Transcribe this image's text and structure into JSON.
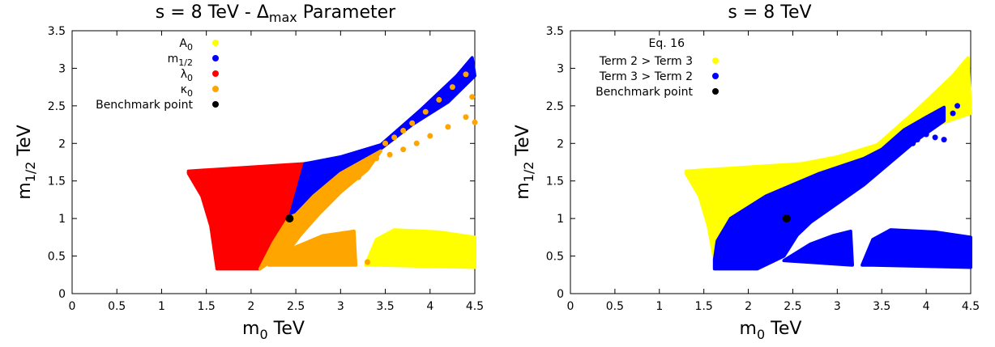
{
  "chart_data": [
    {
      "type": "scatter",
      "title": "s = 8 TeV - Δ",
      "title_sub": "max",
      "title_rest": " Parameter",
      "xlabel": "m",
      "xlabel_sub": "0",
      "xlabel_unit": " TeV",
      "ylabel": "m",
      "ylabel_sub": "1/2",
      "ylabel_unit": " TeV",
      "xlim": [
        0,
        4.5
      ],
      "ylim": [
        0,
        3.5
      ],
      "x_ticks": [
        "0",
        "0.5",
        "1",
        "1.5",
        "2",
        "2.5",
        "3",
        "3.5",
        "4",
        "4.5"
      ],
      "y_ticks": [
        "0",
        "0.5",
        "1",
        "1.5",
        "2",
        "2.5",
        "3",
        "3.5"
      ],
      "legend_position": "top-left",
      "legend": [
        {
          "main": "A",
          "sub": "0",
          "color": "#ffff00"
        },
        {
          "main": "m",
          "sub": "1/2",
          "color": "#0000ff"
        },
        {
          "main": "λ",
          "sub": "0",
          "color": "#ff0000"
        },
        {
          "main": "κ",
          "sub": "0",
          "color": "#ffa500"
        },
        {
          "main": "Benchmark point",
          "sub": "",
          "color": "#000000"
        }
      ],
      "regions": [
        {
          "series": "λ0",
          "color": "#ff0000",
          "polygon": [
            [
              1.3,
              1.63
            ],
            [
              2.6,
              1.73
            ],
            [
              2.43,
              1.05
            ],
            [
              2.25,
              0.68
            ],
            [
              2.1,
              0.33
            ],
            [
              1.62,
              0.33
            ],
            [
              1.55,
              0.9
            ],
            [
              1.45,
              1.3
            ],
            [
              1.3,
              1.6
            ]
          ]
        },
        {
          "series": "m1/2",
          "color": "#0000ff",
          "polygon": [
            [
              2.6,
              1.73
            ],
            [
              3.0,
              1.82
            ],
            [
              3.45,
              1.98
            ],
            [
              3.9,
              2.45
            ],
            [
              4.3,
              2.9
            ],
            [
              4.47,
              3.14
            ],
            [
              4.5,
              2.9
            ],
            [
              4.2,
              2.55
            ],
            [
              3.8,
              2.25
            ],
            [
              3.45,
              1.93
            ],
            [
              3.0,
              1.6
            ],
            [
              2.7,
              1.3
            ],
            [
              2.5,
              1.05
            ],
            [
              2.43,
              1.0
            ]
          ]
        },
        {
          "series": "κ0",
          "color": "#ffa500",
          "polygon": [
            [
              2.43,
              1.02
            ],
            [
              2.5,
              1.05
            ],
            [
              2.7,
              1.3
            ],
            [
              3.0,
              1.6
            ],
            [
              3.45,
              1.9
            ],
            [
              3.3,
              1.65
            ],
            [
              3.0,
              1.35
            ],
            [
              2.75,
              1.05
            ],
            [
              2.55,
              0.78
            ],
            [
              2.45,
              0.62
            ],
            [
              2.3,
              0.5
            ],
            [
              2.1,
              0.33
            ],
            [
              2.25,
              0.68
            ]
          ]
        },
        {
          "series": "κ0",
          "color": "#ffa500",
          "polygon": [
            [
              2.2,
              0.38
            ],
            [
              2.5,
              0.62
            ],
            [
              2.8,
              0.77
            ],
            [
              3.15,
              0.83
            ],
            [
              3.17,
              0.38
            ]
          ]
        },
        {
          "series": "A0",
          "color": "#ffff00",
          "polygon": [
            [
              3.28,
              0.38
            ],
            [
              3.4,
              0.72
            ],
            [
              3.6,
              0.85
            ],
            [
              4.1,
              0.82
            ],
            [
              4.5,
              0.75
            ],
            [
              4.5,
              0.35
            ],
            [
              3.4,
              0.38
            ]
          ]
        }
      ],
      "scatter_points": [
        {
          "series": "κ0",
          "color": "#ffa500",
          "points": [
            [
              3.3,
              0.42
            ],
            [
              3.5,
              2.0
            ],
            [
              3.6,
              2.08
            ],
            [
              3.7,
              2.17
            ],
            [
              3.8,
              2.27
            ],
            [
              3.95,
              2.42
            ],
            [
              4.1,
              2.58
            ],
            [
              4.25,
              2.75
            ],
            [
              4.4,
              2.92
            ],
            [
              3.55,
              1.85
            ],
            [
              3.7,
              1.92
            ],
            [
              3.85,
              2.0
            ],
            [
              4.0,
              2.1
            ],
            [
              4.2,
              2.22
            ],
            [
              4.4,
              2.35
            ],
            [
              4.47,
              2.62
            ],
            [
              4.5,
              2.28
            ],
            [
              3.4,
              1.8
            ],
            [
              3.3,
              1.72
            ],
            [
              3.2,
              1.55
            ]
          ]
        }
      ],
      "benchmark_point": [
        2.43,
        1.0
      ]
    },
    {
      "type": "scatter",
      "title": "s = 8 TeV",
      "xlabel": "m",
      "xlabel_sub": "0",
      "xlabel_unit": " TeV",
      "ylabel": "m",
      "ylabel_sub": "1/2",
      "ylabel_unit": " TeV",
      "xlim": [
        0,
        4.5
      ],
      "ylim": [
        0,
        3.5
      ],
      "x_ticks": [
        "0",
        "0.5",
        "1",
        "1.5",
        "2",
        "2.5",
        "3",
        "3.5",
        "4",
        "4.5"
      ],
      "y_ticks": [
        "0",
        "0.5",
        "1",
        "1.5",
        "2",
        "2.5",
        "3",
        "3.5"
      ],
      "legend_position": "top-left",
      "legend_title": "Eq. 16",
      "legend": [
        {
          "main": "Term 2 > Term 3",
          "sub": "",
          "color": "#ffff00"
        },
        {
          "main": "Term 3 > Term 2",
          "sub": "",
          "color": "#0000ff"
        },
        {
          "main": "Benchmark point",
          "sub": "",
          "color": "#000000"
        }
      ],
      "regions": [
        {
          "series": "Term 2 > Term 3",
          "color": "#ffff00",
          "polygon": [
            [
              1.3,
              1.63
            ],
            [
              2.6,
              1.73
            ],
            [
              3.0,
              1.82
            ],
            [
              3.45,
              1.98
            ],
            [
              3.9,
              2.45
            ],
            [
              4.3,
              2.9
            ],
            [
              4.47,
              3.14
            ],
            [
              4.5,
              2.4
            ],
            [
              4.0,
              2.2
            ],
            [
              3.6,
              1.93
            ],
            [
              3.3,
              1.8
            ],
            [
              2.8,
              1.6
            ],
            [
              2.2,
              1.3
            ],
            [
              1.8,
              1.0
            ],
            [
              1.65,
              0.7
            ],
            [
              1.62,
              0.45
            ],
            [
              1.55,
              0.9
            ],
            [
              1.45,
              1.3
            ],
            [
              1.3,
              1.6
            ]
          ]
        },
        {
          "series": "Term 3 > Term 2",
          "color": "#0000ff",
          "polygon": [
            [
              1.62,
              0.33
            ],
            [
              1.62,
              0.45
            ],
            [
              1.65,
              0.7
            ],
            [
              1.8,
              1.0
            ],
            [
              2.2,
              1.3
            ],
            [
              2.8,
              1.6
            ],
            [
              3.3,
              1.8
            ],
            [
              3.5,
              1.92
            ],
            [
              3.75,
              2.18
            ],
            [
              4.0,
              2.35
            ],
            [
              4.2,
              2.48
            ],
            [
              4.2,
              2.3
            ],
            [
              3.9,
              2.05
            ],
            [
              3.6,
              1.75
            ],
            [
              3.3,
              1.45
            ],
            [
              3.0,
              1.2
            ],
            [
              2.7,
              0.95
            ],
            [
              2.55,
              0.78
            ],
            [
              2.4,
              0.5
            ],
            [
              2.1,
              0.33
            ]
          ]
        },
        {
          "series": "Term 3 > Term 2",
          "color": "#0000ff",
          "polygon": [
            [
              2.4,
              0.44
            ],
            [
              2.7,
              0.66
            ],
            [
              2.95,
              0.77
            ],
            [
              3.15,
              0.83
            ],
            [
              3.17,
              0.38
            ]
          ]
        },
        {
          "series": "Term 3 > Term 2",
          "color": "#0000ff",
          "polygon": [
            [
              3.28,
              0.38
            ],
            [
              3.4,
              0.72
            ],
            [
              3.6,
              0.85
            ],
            [
              4.1,
              0.82
            ],
            [
              4.5,
              0.75
            ],
            [
              4.5,
              0.35
            ],
            [
              3.4,
              0.38
            ]
          ]
        }
      ],
      "scatter_points": [
        {
          "series": "Term 3 > Term 2",
          "color": "#0000ff",
          "points": [
            [
              3.9,
              2.05
            ],
            [
              4.0,
              2.12
            ],
            [
              4.1,
              2.08
            ],
            [
              4.2,
              2.05
            ],
            [
              4.3,
              2.4
            ],
            [
              4.35,
              2.5
            ],
            [
              3.6,
              1.8
            ],
            [
              3.75,
              1.95
            ],
            [
              3.85,
              2.0
            ]
          ]
        }
      ],
      "benchmark_point": [
        2.43,
        1.0
      ]
    }
  ]
}
